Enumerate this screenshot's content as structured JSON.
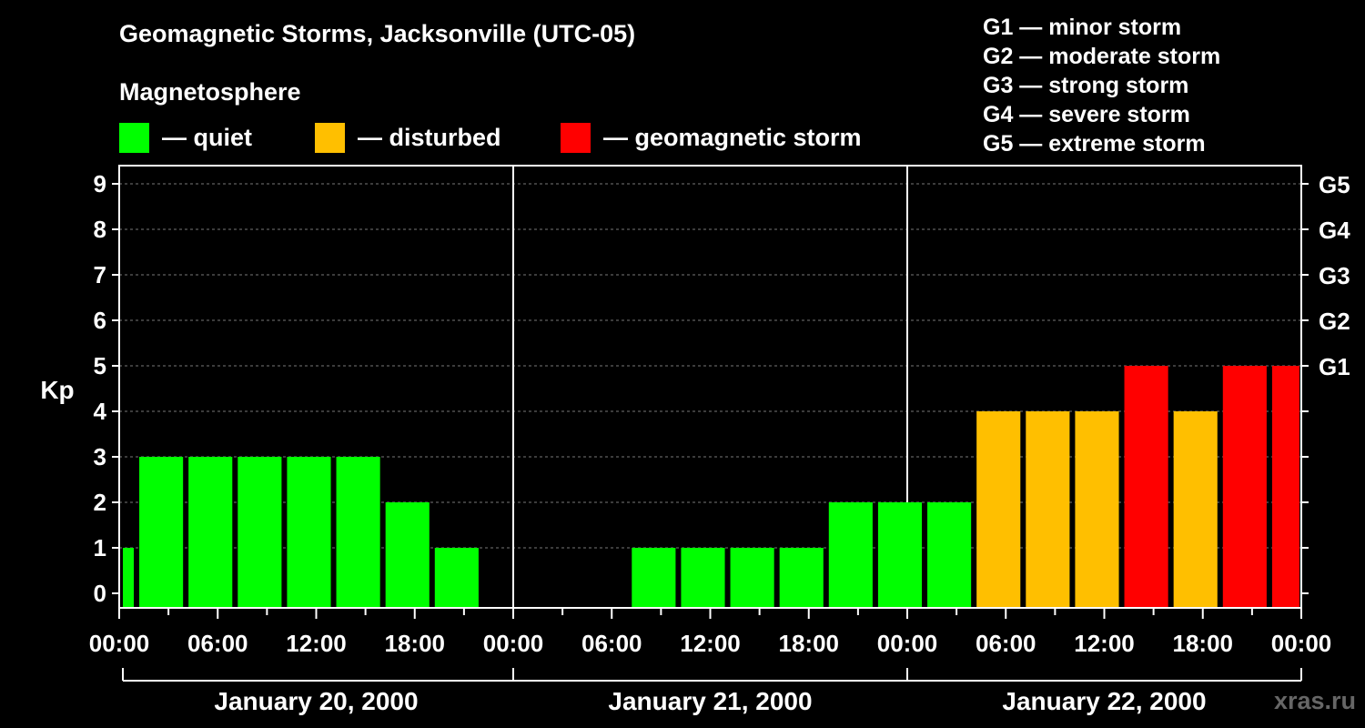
{
  "title": "Geomagnetic Storms, Jacksonville (UTC-05)",
  "magnetosphere": {
    "heading": "Magnetosphere",
    "legend": [
      {
        "label": "— quiet",
        "color": "#00ff00"
      },
      {
        "label": "— disturbed",
        "color": "#ffbf00"
      },
      {
        "label": "— geomagnetic storm",
        "color": "#ff0000"
      }
    ]
  },
  "g_scale": [
    "G1 — minor storm",
    "G2 — moderate storm",
    "G3 — strong storm",
    "G4 — severe storm",
    "G5 — extreme storm"
  ],
  "watermark": "xras.ru",
  "chart_data": {
    "type": "bar",
    "ylabel": "Kp",
    "ylim": [
      0,
      9
    ],
    "yticks": [
      0,
      1,
      2,
      3,
      4,
      5,
      6,
      7,
      8,
      9
    ],
    "right_ticks": [
      {
        "kp": 5,
        "label": "G1"
      },
      {
        "kp": 6,
        "label": "G2"
      },
      {
        "kp": 7,
        "label": "G3"
      },
      {
        "kp": 8,
        "label": "G4"
      },
      {
        "kp": 9,
        "label": "G5"
      }
    ],
    "x_tick_labels": [
      "00:00",
      "06:00",
      "12:00",
      "18:00",
      "00:00",
      "06:00",
      "12:00",
      "18:00",
      "00:00",
      "06:00",
      "12:00",
      "18:00",
      "00:00"
    ],
    "x_hours_range": [
      0,
      72
    ],
    "days": [
      "January 20, 2000",
      "January 21, 2000",
      "January 22, 2000"
    ],
    "grid": true,
    "colors": {
      "quiet": "#00ff00",
      "disturbed": "#ffbf00",
      "storm": "#ff0000"
    },
    "bars": [
      {
        "start": 0,
        "end": 1,
        "kp": 1,
        "status": "quiet"
      },
      {
        "start": 1,
        "end": 4,
        "kp": 3,
        "status": "quiet"
      },
      {
        "start": 4,
        "end": 7,
        "kp": 3,
        "status": "quiet"
      },
      {
        "start": 7,
        "end": 10,
        "kp": 3,
        "status": "quiet"
      },
      {
        "start": 10,
        "end": 13,
        "kp": 3,
        "status": "quiet"
      },
      {
        "start": 13,
        "end": 16,
        "kp": 3,
        "status": "quiet"
      },
      {
        "start": 16,
        "end": 19,
        "kp": 2,
        "status": "quiet"
      },
      {
        "start": 19,
        "end": 22,
        "kp": 1,
        "status": "quiet"
      },
      {
        "start": 22,
        "end": 25,
        "kp": 0,
        "status": "quiet"
      },
      {
        "start": 25,
        "end": 28,
        "kp": 0,
        "status": "quiet"
      },
      {
        "start": 28,
        "end": 31,
        "kp": 0,
        "status": "quiet"
      },
      {
        "start": 31,
        "end": 34,
        "kp": 1,
        "status": "quiet"
      },
      {
        "start": 34,
        "end": 37,
        "kp": 1,
        "status": "quiet"
      },
      {
        "start": 37,
        "end": 40,
        "kp": 1,
        "status": "quiet"
      },
      {
        "start": 40,
        "end": 43,
        "kp": 1,
        "status": "quiet"
      },
      {
        "start": 43,
        "end": 46,
        "kp": 2,
        "status": "quiet"
      },
      {
        "start": 46,
        "end": 49,
        "kp": 2,
        "status": "quiet"
      },
      {
        "start": 49,
        "end": 52,
        "kp": 2,
        "status": "quiet"
      },
      {
        "start": 52,
        "end": 55,
        "kp": 4,
        "status": "disturbed"
      },
      {
        "start": 55,
        "end": 58,
        "kp": 4,
        "status": "disturbed"
      },
      {
        "start": 58,
        "end": 61,
        "kp": 4,
        "status": "disturbed"
      },
      {
        "start": 61,
        "end": 64,
        "kp": 5,
        "status": "storm"
      },
      {
        "start": 64,
        "end": 67,
        "kp": 4,
        "status": "disturbed"
      },
      {
        "start": 67,
        "end": 70,
        "kp": 5,
        "status": "storm"
      },
      {
        "start": 70,
        "end": 72,
        "kp": 5,
        "status": "storm"
      }
    ]
  }
}
